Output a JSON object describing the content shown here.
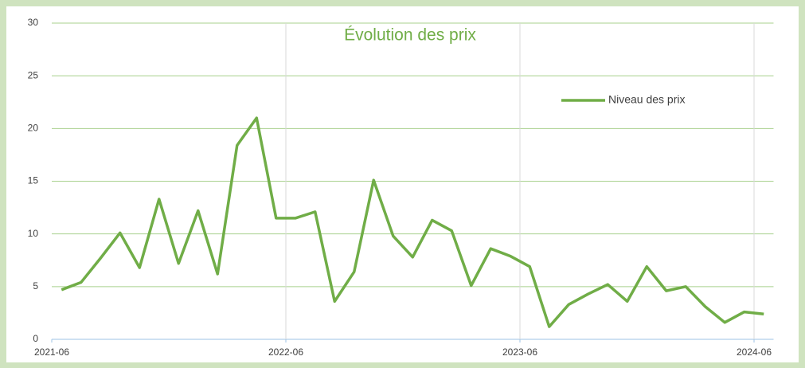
{
  "chart_data": {
    "type": "line",
    "title": "Évolution des prix",
    "categories": [
      "2021-06",
      null,
      null,
      null,
      null,
      null,
      null,
      null,
      null,
      null,
      null,
      null,
      "2022-06",
      null,
      null,
      null,
      null,
      null,
      null,
      null,
      null,
      null,
      null,
      null,
      "2023-06",
      null,
      null,
      null,
      null,
      null,
      null,
      null,
      null,
      null,
      null,
      null,
      "2024-06"
    ],
    "series": [
      {
        "name": "Niveau des prix",
        "color": "#70ad47",
        "values": [
          4.7,
          5.4,
          7.7,
          10.1,
          6.8,
          13.3,
          7.2,
          12.2,
          6.2,
          18.4,
          21.0,
          11.5,
          11.5,
          12.1,
          3.6,
          6.4,
          15.1,
          9.8,
          7.8,
          11.3,
          10.3,
          5.1,
          8.6,
          7.9,
          6.9,
          1.2,
          3.3,
          4.3,
          5.2,
          3.6,
          6.9,
          4.6,
          5.0,
          3.1,
          1.6,
          2.6,
          2.4
        ]
      }
    ],
    "ylim": [
      0,
      30
    ],
    "yticks": [
      0,
      5,
      10,
      15,
      20,
      25,
      30
    ],
    "grid": true,
    "legend": "upper right"
  }
}
